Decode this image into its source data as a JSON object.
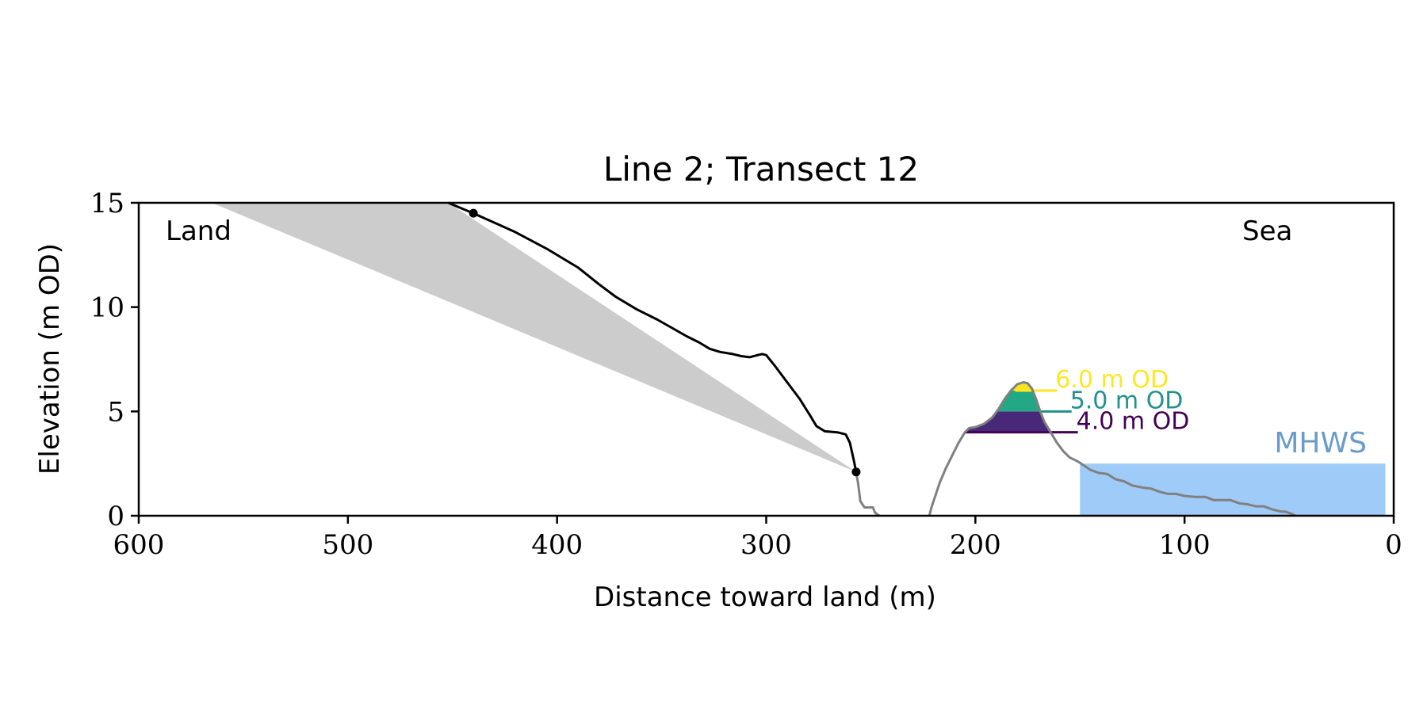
{
  "chart_data": {
    "type": "line",
    "title": "Line 2; Transect 12",
    "xlabel": "Distance toward land (m)",
    "ylabel": "Elevation (m OD)",
    "xlim": [
      600,
      0
    ],
    "ylim": [
      0,
      15
    ],
    "x_axis_reversed": true,
    "x_ticks": [
      600,
      500,
      400,
      300,
      200,
      100,
      0
    ],
    "y_ticks": [
      0,
      5,
      10,
      15
    ],
    "grid": false,
    "legend": "none",
    "annotations": {
      "land": "Land",
      "sea": "Sea",
      "mhws": "MHWS"
    },
    "series": [
      {
        "role": "cliff-profile",
        "color": "#000000",
        "points": [
          [
            452,
            15.0
          ],
          [
            440,
            14.5
          ],
          [
            420,
            13.6
          ],
          [
            405,
            12.8
          ],
          [
            390,
            11.9
          ],
          [
            380,
            11.1
          ],
          [
            372,
            10.5
          ],
          [
            362,
            9.9
          ],
          [
            352,
            9.4
          ],
          [
            345,
            9.0
          ],
          [
            338,
            8.6
          ],
          [
            332,
            8.3
          ],
          [
            327,
            8.0
          ],
          [
            322,
            7.85
          ],
          [
            316,
            7.75
          ],
          [
            312,
            7.65
          ],
          [
            308,
            7.6
          ],
          [
            304,
            7.7
          ],
          [
            302,
            7.75
          ],
          [
            300,
            7.7
          ],
          [
            296,
            7.2
          ],
          [
            290,
            6.4
          ],
          [
            284,
            5.6
          ],
          [
            279,
            4.8
          ],
          [
            276,
            4.3
          ],
          [
            272,
            4.05
          ],
          [
            266,
            4.0
          ],
          [
            262,
            3.9
          ],
          [
            260,
            3.5
          ],
          [
            258,
            2.6
          ],
          [
            257,
            2.1
          ]
        ]
      },
      {
        "role": "ground-profile-gray",
        "color": "#808080",
        "segments": [
          [
            [
              257,
              2.1
            ],
            [
              256,
              1.5
            ],
            [
              255,
              0.7
            ],
            [
              253,
              0.4
            ],
            [
              249,
              0.4
            ],
            [
              248,
              0.15
            ],
            [
              246,
              0.0
            ]
          ],
          [
            [
              222,
              0.0
            ],
            [
              221,
              0.4
            ],
            [
              219,
              1.0
            ],
            [
              217,
              1.6
            ],
            [
              214,
              2.3
            ],
            [
              211,
              2.9
            ],
            [
              208,
              3.5
            ],
            [
              205,
              4.0
            ],
            [
              203,
              4.2
            ],
            [
              200,
              4.25
            ],
            [
              196,
              4.4
            ],
            [
              192,
              4.7
            ],
            [
              189,
              5.1
            ],
            [
              186,
              5.6
            ],
            [
              183,
              6.0
            ],
            [
              180,
              6.3
            ],
            [
              177,
              6.4
            ],
            [
              175,
              6.35
            ],
            [
              173,
              6.1
            ],
            [
              171,
              5.6
            ],
            [
              169,
              5.0
            ],
            [
              167,
              4.5
            ],
            [
              164,
              4.0
            ],
            [
              161,
              3.5
            ],
            [
              158,
              3.1
            ],
            [
              155,
              2.8
            ],
            [
              151,
              2.6
            ],
            [
              148,
              2.4
            ],
            [
              145,
              2.2
            ],
            [
              141,
              2.05
            ],
            [
              137,
              2.0
            ],
            [
              133,
              1.75
            ],
            [
              129,
              1.65
            ],
            [
              125,
              1.45
            ],
            [
              120,
              1.35
            ],
            [
              116,
              1.3
            ],
            [
              112,
              1.15
            ],
            [
              108,
              1.05
            ],
            [
              104,
              1.05
            ],
            [
              100,
              0.95
            ],
            [
              95,
              0.9
            ],
            [
              90,
              0.9
            ],
            [
              86,
              0.75
            ],
            [
              82,
              0.75
            ],
            [
              78,
              0.75
            ],
            [
              74,
              0.6
            ],
            [
              70,
              0.55
            ],
            [
              66,
              0.45
            ],
            [
              62,
              0.45
            ],
            [
              58,
              0.3
            ],
            [
              54,
              0.2
            ],
            [
              52,
              0.2
            ],
            [
              49,
              0.1
            ],
            [
              47,
              0.0
            ]
          ]
        ]
      }
    ],
    "shaded_wedge": {
      "color": "#cccccc",
      "polygon": [
        [
          565,
          15.0
        ],
        [
          452,
          15.0
        ],
        [
          257,
          2.1
        ]
      ]
    },
    "markers": [
      {
        "x": 440,
        "y": 14.5,
        "color": "#000000"
      },
      {
        "x": 257,
        "y": 2.1,
        "color": "#000000"
      }
    ],
    "mhws_band": {
      "color": "#9ecbf8",
      "label_color": "#6a9ccb",
      "level": 2.5,
      "x_from": 150,
      "x_to": 4
    },
    "od_levels": [
      {
        "label": "6.0 m OD",
        "level": 6.0,
        "color": "#fde725",
        "line_from": 181,
        "line_to": 161
      },
      {
        "label": "5.0 m OD",
        "level": 5.0,
        "color": "#21918c",
        "line_from": 169,
        "line_to": 154
      },
      {
        "label": "4.0 m OD",
        "level": 4.0,
        "color": "#440154",
        "line_from": 205,
        "line_to": 151
      }
    ],
    "od_fill_colors": [
      "#482878",
      "#22a884",
      "#f9e51d"
    ]
  }
}
